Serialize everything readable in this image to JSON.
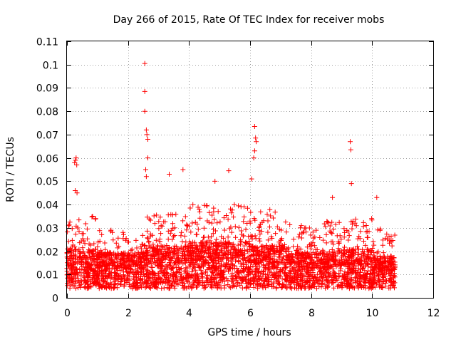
{
  "chart_data": {
    "type": "scatter",
    "title": "Day 266 of 2015, Rate Of TEC Index for receiver mobs",
    "xlabel": "GPS time / hours",
    "ylabel": "ROTI / TECUs",
    "xlim": [
      0,
      12
    ],
    "ylim": [
      0,
      0.11
    ],
    "x_ticks": [
      "0",
      "2",
      "4",
      "6",
      "8",
      "10",
      "12"
    ],
    "y_ticks": [
      "0",
      "0.01",
      "0.02",
      "0.03",
      "0.04",
      "0.05",
      "0.06",
      "0.07",
      "0.08",
      "0.09",
      "0.1",
      "0.11"
    ],
    "grid": true,
    "marker": "+",
    "series_color": "#ff0000",
    "data_range_hours": [
      0,
      10.75
    ],
    "outliers": [
      {
        "x": 0.25,
        "y": 0.058
      },
      {
        "x": 0.28,
        "y": 0.059
      },
      {
        "x": 0.3,
        "y": 0.06
      },
      {
        "x": 0.32,
        "y": 0.057
      },
      {
        "x": 0.27,
        "y": 0.046
      },
      {
        "x": 0.33,
        "y": 0.045
      },
      {
        "x": 2.55,
        "y": 0.1005
      },
      {
        "x": 2.55,
        "y": 0.0885
      },
      {
        "x": 2.55,
        "y": 0.08
      },
      {
        "x": 2.6,
        "y": 0.072
      },
      {
        "x": 2.62,
        "y": 0.07
      },
      {
        "x": 2.65,
        "y": 0.068
      },
      {
        "x": 2.65,
        "y": 0.06
      },
      {
        "x": 2.58,
        "y": 0.055
      },
      {
        "x": 2.6,
        "y": 0.052
      },
      {
        "x": 3.8,
        "y": 0.055
      },
      {
        "x": 3.35,
        "y": 0.053
      },
      {
        "x": 5.3,
        "y": 0.0545
      },
      {
        "x": 4.85,
        "y": 0.05
      },
      {
        "x": 6.15,
        "y": 0.0735
      },
      {
        "x": 6.18,
        "y": 0.0685
      },
      {
        "x": 6.2,
        "y": 0.067
      },
      {
        "x": 6.15,
        "y": 0.063
      },
      {
        "x": 6.12,
        "y": 0.06
      },
      {
        "x": 6.05,
        "y": 0.051
      },
      {
        "x": 9.28,
        "y": 0.067
      },
      {
        "x": 9.3,
        "y": 0.0635
      },
      {
        "x": 9.32,
        "y": 0.049
      },
      {
        "x": 10.15,
        "y": 0.043
      },
      {
        "x": 8.7,
        "y": 0.043
      }
    ],
    "bulk_profile": [
      {
        "x_range": [
          0,
          1
        ],
        "typical": 0.014,
        "upper": 0.035
      },
      {
        "x_range": [
          1,
          2.5
        ],
        "typical": 0.013,
        "upper": 0.03
      },
      {
        "x_range": [
          2.5,
          4
        ],
        "typical": 0.015,
        "upper": 0.036
      },
      {
        "x_range": [
          4,
          6
        ],
        "typical": 0.016,
        "upper": 0.04
      },
      {
        "x_range": [
          6,
          7.3
        ],
        "typical": 0.015,
        "upper": 0.038
      },
      {
        "x_range": [
          7.3,
          8.5
        ],
        "typical": 0.013,
        "upper": 0.032
      },
      {
        "x_range": [
          8.5,
          10
        ],
        "typical": 0.014,
        "upper": 0.035
      },
      {
        "x_range": [
          10,
          10.75
        ],
        "typical": 0.012,
        "upper": 0.03
      }
    ]
  }
}
